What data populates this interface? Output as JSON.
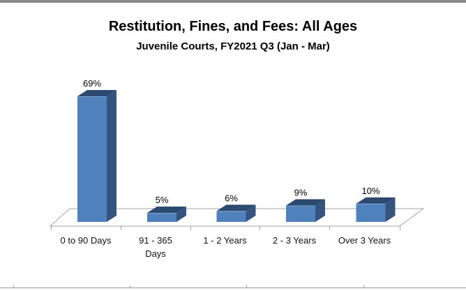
{
  "window": {
    "top_border_color": "#8a8a8a",
    "bottom_rule_color": "#9b9b9b",
    "bottom_rule_tick_x": [
      19,
      186,
      353,
      521
    ]
  },
  "chart_data": {
    "type": "bar",
    "style": "3d-column",
    "title": "Restitution, Fines, and Fees: All Ages",
    "subtitle": "Juvenile Courts, FY2021 Q3 (Jan - Mar)",
    "categories": [
      "0 to 90 Days",
      "91 - 365 Days",
      "1 - 2 Years",
      "2 - 3 Years",
      "Over 3 Years"
    ],
    "values": [
      69,
      5,
      6,
      9,
      10
    ],
    "data_labels": [
      "69%",
      "5%",
      "6%",
      "9%",
      "10%"
    ],
    "unit": "percent",
    "value_axis_visible": false,
    "grid": false,
    "legend": false,
    "colors": {
      "bar_front": "#4f81bd",
      "bar_side": "#34547f",
      "bar_top": "#2c4a70",
      "bar_highlight": "#7fa5d2",
      "axis_line": "#a6a6a6",
      "text": "#000000"
    }
  }
}
